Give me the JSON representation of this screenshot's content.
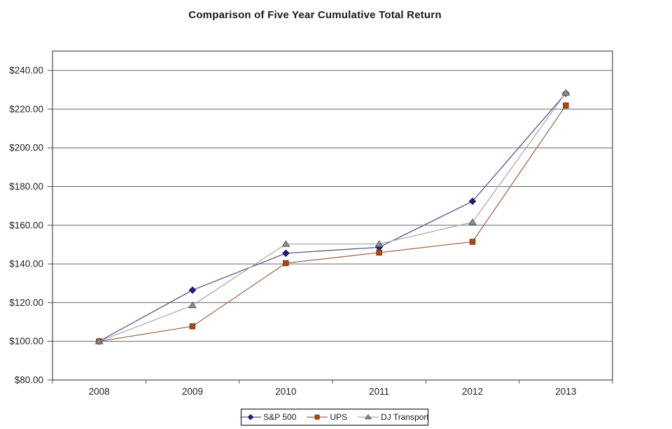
{
  "chart_data": {
    "type": "line",
    "title": "Comparison of Five Year Cumulative Total Return",
    "xlabel": "",
    "ylabel": "",
    "categories": [
      "2008",
      "2009",
      "2010",
      "2011",
      "2012",
      "2013"
    ],
    "series": [
      {
        "name": "S&P 500",
        "marker": "diamond",
        "line_color": "#55558F",
        "marker_fill": "#20207A",
        "marker_edge": "#141452",
        "values": [
          100.0,
          126.46,
          145.51,
          148.59,
          172.37,
          228.19
        ]
      },
      {
        "name": "UPS",
        "marker": "square",
        "line_color": "#A06A50",
        "marker_fill": "#AE4A15",
        "marker_edge": "#6E3007",
        "values": [
          100.0,
          107.75,
          140.39,
          145.84,
          151.44,
          221.91
        ]
      },
      {
        "name": "DJ Transport",
        "marker": "triangle",
        "line_color": "#ABABAB",
        "marker_fill": "#8C8C8C",
        "marker_edge": "#5F5F5F",
        "values": [
          100.0,
          118.59,
          150.3,
          150.31,
          161.56,
          228.42
        ]
      }
    ],
    "y_ticks": [
      {
        "label": "$240.00",
        "value": 240
      },
      {
        "label": "$220.00",
        "value": 220
      },
      {
        "label": "$200.00",
        "value": 200
      },
      {
        "label": "$180.00",
        "value": 180
      },
      {
        "label": "$160.00",
        "value": 160
      },
      {
        "label": "$140.00",
        "value": 140
      },
      {
        "label": "$120.00",
        "value": 120
      },
      {
        "label": "$100.00",
        "value": 100
      },
      {
        "label": "$80.00",
        "value": 80
      }
    ],
    "y_axis_range": [
      80,
      250
    ],
    "grid": true,
    "legend_position": "bottom",
    "colors": {
      "background": "#FFFFFF",
      "gridline": "#666666",
      "plot_border": "#4D4D4D",
      "tick": "#4D4D4D",
      "axis_text": "#1F1F1F",
      "legend_border": "#000000"
    }
  }
}
